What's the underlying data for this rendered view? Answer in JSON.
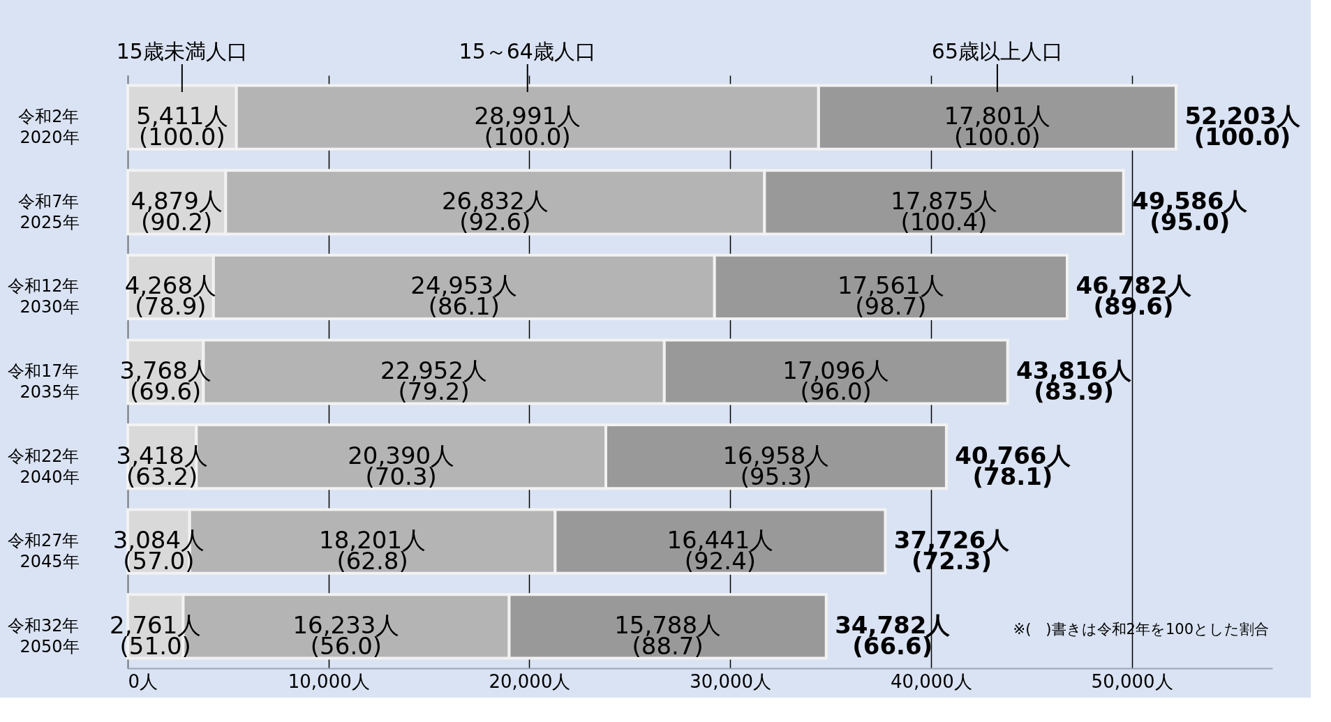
{
  "chart_data": {
    "type": "bar",
    "orientation": "horizontal",
    "stacked": true,
    "categories": [
      "令和2年\n2020年",
      "令和7年\n2025年",
      "令和12年\n2030年",
      "令和17年\n2035年",
      "令和22年\n2040年",
      "令和27年\n2045年",
      "令和32年\n2050年"
    ],
    "series": [
      {
        "name": "15歳未満人口",
        "color": "#d9d9d9",
        "values": [
          5411,
          4879,
          4268,
          3768,
          3418,
          3084,
          2761
        ],
        "value_labels": [
          "5,411人\n(100.0)",
          "4,879人\n(90.2)",
          "4,268人\n(78.9)",
          "3,768人\n(69.6)",
          "3,418人\n(63.2)",
          "3,084人\n(57.0)",
          "2,761人\n(51.0)"
        ]
      },
      {
        "name": "15～64歳人口",
        "color": "#b4b4b4",
        "values": [
          28991,
          26832,
          24953,
          22952,
          20390,
          18201,
          16233
        ],
        "value_labels": [
          "28,991人\n(100.0)",
          "26,832人\n(92.6)",
          "24,953人\n(86.1)",
          "22,952人\n(79.2)",
          "20,390人\n(70.3)",
          "18,201人\n(62.8)",
          "16,233人\n(56.0)"
        ]
      },
      {
        "name": "65歳以上人口",
        "color": "#999999",
        "values": [
          17801,
          17875,
          17561,
          17096,
          16958,
          16441,
          15788
        ],
        "value_labels": [
          "17,801人\n(100.0)",
          "17,875人\n(100.4)",
          "17,561人\n(98.7)",
          "17,096人\n(96.0)",
          "16,958人\n(95.3)",
          "16,441人\n(92.4)",
          "15,788人\n(88.7)"
        ]
      }
    ],
    "totals": [
      "52,203人\n(100.0)",
      "49,586人\n(95.0)",
      "46,782人\n(89.6)",
      "43,816人\n(83.9)",
      "40,766人\n(78.1)",
      "37,726人\n(72.3)",
      "34,782人\n(66.6)"
    ],
    "xlim": [
      0,
      57000
    ],
    "xticks": [
      {
        "value": 0,
        "label": "0人"
      },
      {
        "value": 10000,
        "label": "10,000人"
      },
      {
        "value": 20000,
        "label": "20,000人"
      },
      {
        "value": 30000,
        "label": "30,000人"
      },
      {
        "value": 40000,
        "label": "40,000人"
      },
      {
        "value": 50000,
        "label": "50,000人"
      }
    ],
    "grid": "x",
    "legend": "top",
    "annotations": [
      "※(　)書きは令和2年を100とした割合"
    ]
  }
}
